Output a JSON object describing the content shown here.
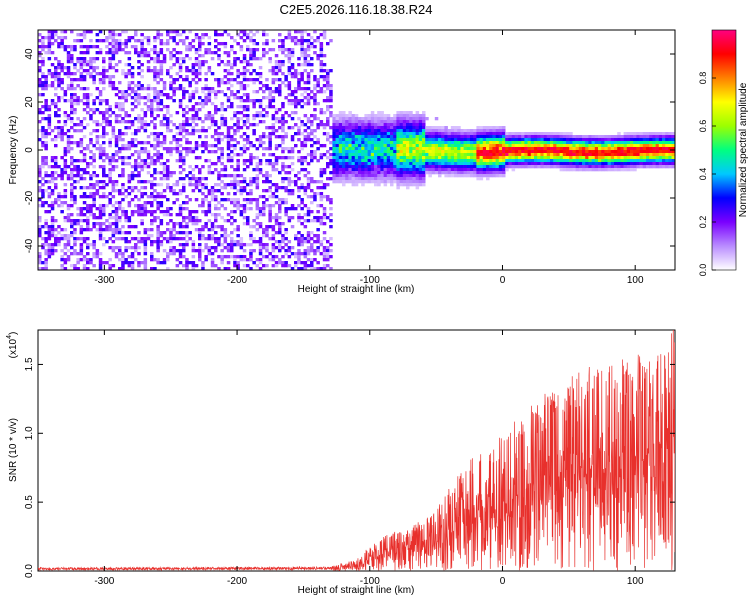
{
  "title": "C2E5.2026.116.18.38.R24",
  "spectrogram": {
    "type": "heatmap",
    "xlabel": "Height of straight line (km)",
    "ylabel": "Frequency (Hz)",
    "xlim": [
      -350,
      130
    ],
    "ylim": [
      -50,
      50
    ],
    "xticks": [
      -300,
      -200,
      -100,
      0,
      100
    ],
    "xtick_labels": [
      "-300",
      "-200",
      "-100",
      "0",
      "100"
    ],
    "yticks": [
      40,
      20,
      0,
      -20,
      -40
    ],
    "ytick_labels": [
      "40",
      "20",
      "0",
      "-20",
      "-40"
    ],
    "noise_region_end_km": -130,
    "signal_center_hz": 0,
    "colorbar": {
      "label": "Normalized spectral amplitude",
      "ticks": [
        0.0,
        0.2,
        0.4,
        0.6,
        0.8
      ],
      "tick_labels": [
        "0.0",
        "0.2",
        "0.4",
        "0.6",
        "0.8"
      ],
      "range": [
        0,
        1
      ],
      "colors": [
        "#ffffff",
        "#b98cff",
        "#7a00ff",
        "#0000ff",
        "#00c8ff",
        "#00ff80",
        "#9cff00",
        "#ffff00",
        "#ff8000",
        "#ff0000",
        "#ff0080"
      ]
    }
  },
  "chart_data": {
    "type": "line",
    "xlabel": "Height of straight line (km)",
    "ylabel": "SNR (10 * v/v)",
    "multiplier": "(x10",
    "multiplier_exp": "4",
    "multiplier_close": ")",
    "xlim": [
      -350,
      130
    ],
    "ylim": [
      0,
      1.75
    ],
    "xticks": [
      -300,
      -200,
      -100,
      0,
      100
    ],
    "xtick_labels": [
      "-300",
      "-200",
      "-100",
      "0",
      "100"
    ],
    "yticks": [
      0.0,
      0.5,
      1.0,
      1.5
    ],
    "ytick_labels": [
      "0.0",
      "0.5",
      "1.0",
      "1.5"
    ],
    "color": "#e8302c",
    "envelope": {
      "x": [
        -350,
        -130,
        -110,
        -100,
        -90,
        -80,
        -70,
        -60,
        -50,
        -40,
        -30,
        -20,
        -10,
        0,
        10,
        20,
        30,
        40,
        50,
        60,
        70,
        80,
        90,
        100,
        110,
        120,
        130
      ],
      "y": [
        0.025,
        0.03,
        0.08,
        0.18,
        0.25,
        0.28,
        0.3,
        0.38,
        0.45,
        0.6,
        0.75,
        0.8,
        0.85,
        0.95,
        1.05,
        1.15,
        1.25,
        1.3,
        1.35,
        1.4,
        1.45,
        1.5,
        1.55,
        1.5,
        1.55,
        1.6,
        1.75
      ]
    }
  }
}
